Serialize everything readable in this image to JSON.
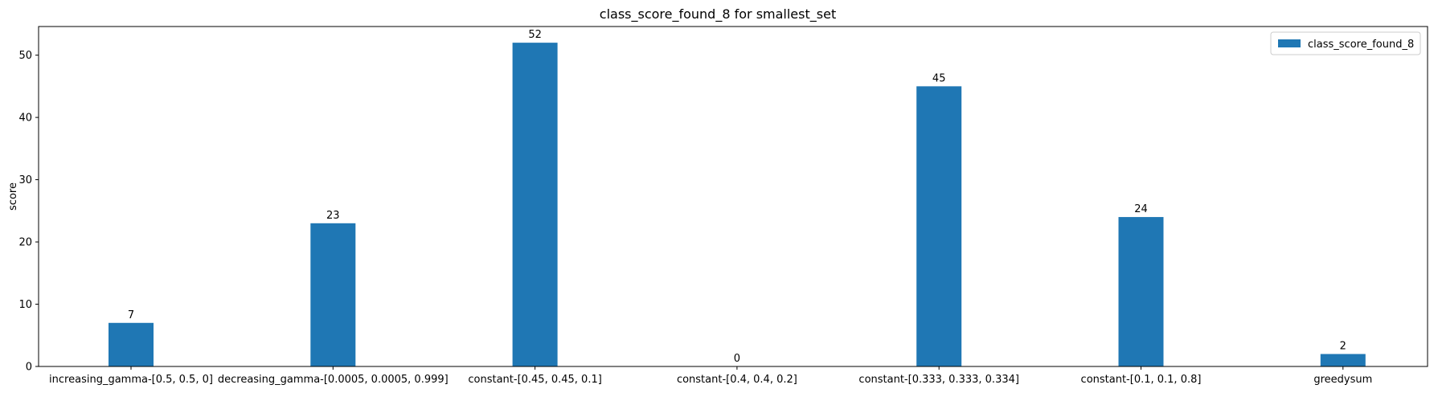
{
  "chart_data": {
    "type": "bar",
    "title": "class_score_found_8 for smallest_set",
    "xlabel": "",
    "ylabel": "score",
    "ylim": [
      0,
      54.6
    ],
    "yticks": [
      0,
      10,
      20,
      30,
      40,
      50
    ],
    "grid": false,
    "legend_position": "top-right",
    "categories": [
      "increasing_gamma-[0.5, 0.5, 0]",
      "decreasing_gamma-[0.0005, 0.0005, 0.999]",
      "constant-[0.45, 0.45, 0.1]",
      "constant-[0.4, 0.4, 0.2]",
      "constant-[0.333, 0.333, 0.334]",
      "constant-[0.1, 0.1, 0.8]",
      "greedysum"
    ],
    "series": [
      {
        "name": "class_score_found_8",
        "color": "#1f77b4",
        "values": [
          7,
          23,
          52,
          0,
          45,
          24,
          2
        ]
      }
    ],
    "data_labels": [
      "7",
      "23",
      "52",
      "0",
      "45",
      "24",
      "2"
    ]
  }
}
